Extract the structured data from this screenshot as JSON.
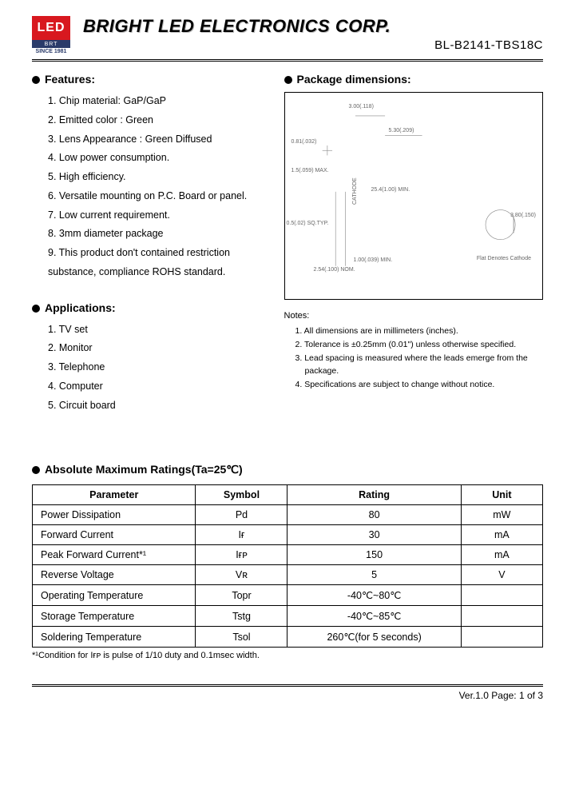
{
  "header": {
    "logo_text": "LED",
    "logo_sub": "BRT",
    "since": "SINCE 1981",
    "company": "BRIGHT LED ELECTRONICS CORP.",
    "part_number": "BL-B2141-TBS18C"
  },
  "features": {
    "title": "Features:",
    "items": [
      "1. Chip material: GaP/GaP",
      "2. Emitted color : Green",
      "3. Lens Appearance : Green Diffused",
      "4. Low power consumption.",
      "5. High efficiency.",
      "6. Versatile mounting on P.C. Board or panel.",
      "7. Low current requirement.",
      "8. 3mm diameter package",
      "9. This product don't contained restriction substance, compliance ROHS standard."
    ]
  },
  "applications": {
    "title": "Applications:",
    "items": [
      "1. TV set",
      "2. Monitor",
      "3. Telephone",
      "4. Computer",
      "5. Circuit board"
    ]
  },
  "package": {
    "title": "Package dimensions:",
    "dim_labels": {
      "d1": "3.00(.118)",
      "d2": "5.30(.209)",
      "d3": "0.81(.032)",
      "d4": "1.5(.059) MAX.",
      "d5": "25.4(1.00) MIN.",
      "d6": "0.5(.02) SQ.TYP.",
      "d7": "1.00(.039) MIN.",
      "d8": "2.54(.100) NOM.",
      "d9": "3.80(.150)",
      "flat": "Flat Denotes Cathode",
      "cathode": "CATHODE"
    },
    "notes_title": "Notes:",
    "notes": [
      "1. All dimensions are in millimeters (inches).",
      "2. Tolerance is ±0.25mm (0.01\") unless otherwise specified.",
      "3. Lead spacing is measured where the leads emerge from the package.",
      "4. Specifications are subject to change without notice."
    ]
  },
  "ratings": {
    "title": "Absolute Maximum Ratings(Ta=25℃)",
    "columns": [
      "Parameter",
      "Symbol",
      "Rating",
      "Unit"
    ],
    "rows": [
      {
        "param": "Power Dissipation",
        "symbol": "Pd",
        "rating": "80",
        "unit": "mW"
      },
      {
        "param": "Forward Current",
        "symbol": "Iғ",
        "rating": "30",
        "unit": "mA"
      },
      {
        "param": "Peak Forward Current*¹",
        "symbol": "Iғᴘ",
        "rating": "150",
        "unit": "mA"
      },
      {
        "param": "Reverse Voltage",
        "symbol": "Vʀ",
        "rating": "5",
        "unit": "V"
      },
      {
        "param": "Operating Temperature",
        "symbol": "Topr",
        "rating": "-40℃~80℃",
        "unit": ""
      },
      {
        "param": "Storage Temperature",
        "symbol": "Tstg",
        "rating": "-40℃~85℃",
        "unit": ""
      },
      {
        "param": "Soldering Temperature",
        "symbol": "Tsol",
        "rating": "260℃(for 5 seconds)",
        "unit": ""
      }
    ],
    "footnote": "*¹Condition for Iғᴘ is pulse of 1/10 duty and 0.1msec width."
  },
  "footer": {
    "pager": "Ver.1.0  Page:  1  of  3"
  },
  "colors": {
    "logo_red": "#d8181f",
    "logo_blue": "#2a3b6a",
    "text": "#000000",
    "fine_text": "#555555"
  }
}
